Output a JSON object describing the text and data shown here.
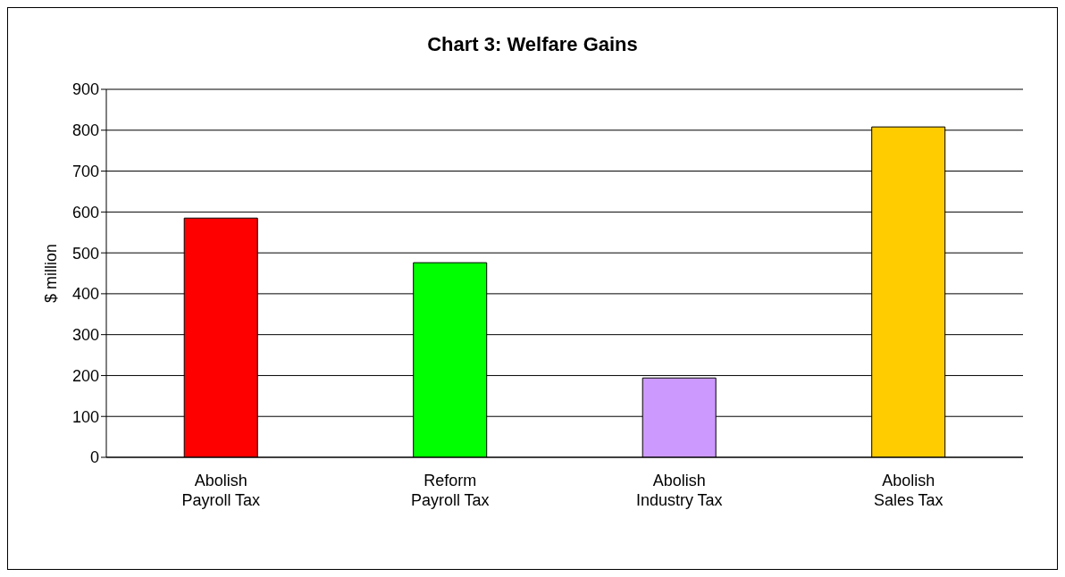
{
  "chart_data": {
    "type": "bar",
    "title": "Chart 3: Welfare Gains",
    "ylabel": "$ million",
    "categories": [
      "Abolish\nPayroll Tax",
      "Reform\nPayroll Tax",
      "Abolish\nIndustry Tax",
      "Abolish\nSales Tax"
    ],
    "values": [
      585,
      476,
      194,
      808
    ],
    "colors": [
      "#ff0000",
      "#00ff00",
      "#cc99ff",
      "#ffcc00"
    ],
    "ylim": [
      0,
      900
    ],
    "yticks": [
      0,
      100,
      200,
      300,
      400,
      500,
      600,
      700,
      800,
      900
    ],
    "grid": "y"
  }
}
